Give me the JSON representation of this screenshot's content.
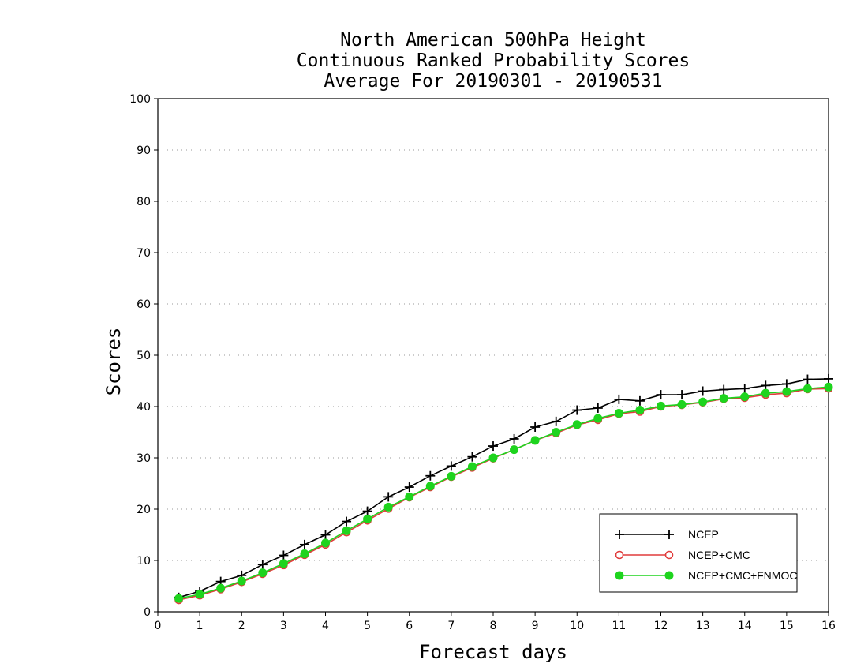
{
  "title": [
    "North American 500hPa Height",
    "Continuous Ranked Probability Scores",
    "Average For 20190301 - 20190531"
  ],
  "chart_data": {
    "type": "line",
    "title": "North American 500hPa Height / Continuous Ranked Probability Scores / Average For 20190301 - 20190531",
    "xlabel": "Forecast days",
    "ylabel": "Scores",
    "xlim": [
      0,
      16
    ],
    "ylim": [
      0,
      100
    ],
    "xticks": [
      "0",
      "1",
      "2",
      "3",
      "4",
      "5",
      "6",
      "7",
      "8",
      "9",
      "10",
      "11",
      "12",
      "13",
      "14",
      "15",
      "16"
    ],
    "yticks": [
      "0",
      "10",
      "20",
      "30",
      "40",
      "50",
      "60",
      "70",
      "80",
      "90",
      "100"
    ],
    "grid": true,
    "legend_position": "bottom-right",
    "x": [
      0.5,
      1,
      1.5,
      2,
      2.5,
      3,
      3.5,
      4,
      4.5,
      5,
      5.5,
      6,
      6.5,
      7,
      7.5,
      8,
      8.5,
      9,
      9.5,
      10,
      10.5,
      11,
      11.5,
      12,
      12.5,
      13,
      13.5,
      14,
      14.5,
      15,
      15.5,
      16
    ],
    "series": [
      {
        "name": "NCEP",
        "color": "#000000",
        "marker": "plus",
        "values": [
          2.8,
          4.0,
          5.9,
          7.1,
          9.2,
          11.0,
          13.1,
          15.0,
          17.6,
          19.6,
          22.4,
          24.3,
          26.5,
          28.4,
          30.2,
          32.3,
          33.7,
          36.0,
          37.1,
          39.3,
          39.7,
          41.4,
          41.1,
          42.3,
          42.3,
          43.0,
          43.3,
          43.5,
          44.1,
          44.4,
          45.3,
          45.4
        ]
      },
      {
        "name": "NCEP+CMC",
        "color": "#e03c3c",
        "marker": "open-circle",
        "values": [
          2.3,
          3.2,
          4.4,
          5.8,
          7.4,
          9.1,
          11.1,
          13.1,
          15.5,
          17.8,
          20.1,
          22.3,
          24.3,
          26.3,
          28.1,
          29.9,
          31.6,
          33.4,
          34.8,
          36.4,
          37.4,
          38.6,
          39.0,
          40.0,
          40.3,
          40.8,
          41.5,
          41.7,
          42.3,
          42.6,
          43.4,
          43.5
        ]
      },
      {
        "name": "NCEP+CMC+FNMOC",
        "color": "#1ed41e",
        "marker": "filled-circle",
        "values": [
          2.6,
          3.4,
          4.6,
          6.0,
          7.6,
          9.4,
          11.3,
          13.4,
          15.8,
          18.1,
          20.4,
          22.4,
          24.5,
          26.4,
          28.3,
          30.0,
          31.6,
          33.4,
          35.0,
          36.5,
          37.7,
          38.7,
          39.3,
          40.1,
          40.4,
          40.9,
          41.6,
          41.9,
          42.6,
          42.9,
          43.5,
          43.8
        ]
      }
    ]
  }
}
